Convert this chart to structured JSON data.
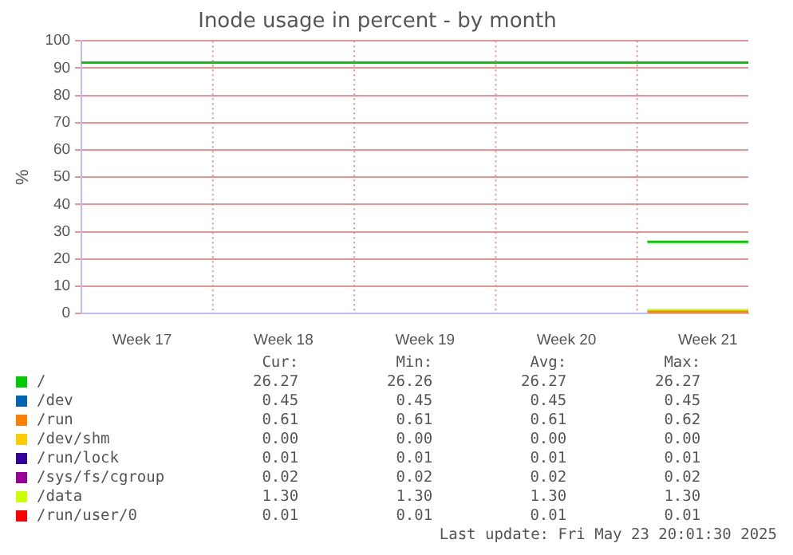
{
  "chart_data": {
    "type": "line",
    "title": "Inode usage in percent - by month",
    "ylabel": "%",
    "categories": [
      null,
      null,
      null,
      "Week 17",
      null,
      null,
      null,
      null,
      null,
      null,
      "Week 18",
      null,
      null,
      null,
      null,
      null,
      null,
      "Week 19",
      null,
      null,
      null,
      null,
      null,
      null,
      "Week 20",
      null,
      null,
      null,
      null,
      null,
      null,
      "Week 21",
      null,
      null
    ],
    "ylim": [
      0,
      100
    ],
    "yticks": [
      0,
      10,
      20,
      30,
      40,
      50,
      60,
      70,
      80,
      90,
      100
    ],
    "grid": true,
    "legend": "bottom",
    "marker": "none",
    "line_style": "solid",
    "ref_lines": [
      {
        "axis": "y",
        "value": 92,
        "color": "#00cc00"
      }
    ],
    "series": [
      {
        "name": "/",
        "color": "#00cc00",
        "values": [
          null,
          null,
          null,
          null,
          null,
          null,
          null,
          null,
          null,
          null,
          null,
          null,
          null,
          null,
          null,
          null,
          null,
          null,
          null,
          null,
          null,
          null,
          null,
          null,
          null,
          null,
          null,
          null,
          26.27,
          26.27,
          26.27,
          26.27,
          26.27,
          26.27
        ]
      },
      {
        "name": "/dev",
        "color": "#0066b3",
        "values": [
          null,
          null,
          null,
          null,
          null,
          null,
          null,
          null,
          null,
          null,
          null,
          null,
          null,
          null,
          null,
          null,
          null,
          null,
          null,
          null,
          null,
          null,
          null,
          null,
          null,
          null,
          null,
          null,
          null,
          null,
          null,
          null,
          null,
          null
        ]
      },
      {
        "name": "/run",
        "color": "#ff8000",
        "values": [
          null,
          null,
          null,
          null,
          null,
          null,
          null,
          null,
          null,
          null,
          null,
          null,
          null,
          null,
          null,
          null,
          null,
          null,
          null,
          null,
          null,
          null,
          null,
          null,
          null,
          null,
          null,
          null,
          0.61,
          0.61,
          0.61,
          0.61,
          0.61,
          0.61
        ]
      },
      {
        "name": "/dev/shm",
        "color": "#ffcc00",
        "values": [
          null,
          null,
          null,
          null,
          null,
          null,
          null,
          null,
          null,
          null,
          null,
          null,
          null,
          null,
          null,
          null,
          null,
          null,
          null,
          null,
          null,
          null,
          null,
          null,
          null,
          null,
          null,
          null,
          null,
          null,
          null,
          null,
          null,
          null
        ]
      },
      {
        "name": "/run/lock",
        "color": "#330099",
        "values": [
          null,
          null,
          null,
          null,
          null,
          null,
          null,
          null,
          null,
          null,
          null,
          null,
          null,
          null,
          null,
          null,
          null,
          null,
          null,
          null,
          null,
          null,
          null,
          null,
          null,
          null,
          null,
          null,
          null,
          null,
          null,
          null,
          null,
          null
        ]
      },
      {
        "name": "/sys/fs/cgroup",
        "color": "#990099",
        "values": [
          null,
          null,
          null,
          null,
          null,
          null,
          null,
          null,
          null,
          null,
          null,
          null,
          null,
          null,
          null,
          null,
          null,
          null,
          null,
          null,
          null,
          null,
          null,
          null,
          null,
          null,
          null,
          null,
          null,
          null,
          null,
          null,
          null,
          null
        ]
      },
      {
        "name": "/data",
        "color": "#ccff00",
        "values": [
          null,
          null,
          null,
          null,
          null,
          null,
          null,
          null,
          null,
          null,
          null,
          null,
          null,
          null,
          null,
          null,
          null,
          null,
          null,
          null,
          null,
          null,
          null,
          null,
          null,
          null,
          null,
          null,
          1.3,
          1.3,
          1.3,
          1.3,
          1.3,
          1.3
        ]
      },
      {
        "name": "/run/user/0",
        "color": "#ff0000",
        "values": [
          null,
          null,
          null,
          null,
          null,
          null,
          null,
          null,
          null,
          null,
          null,
          null,
          null,
          null,
          null,
          null,
          null,
          null,
          null,
          null,
          null,
          null,
          null,
          null,
          null,
          null,
          null,
          null,
          null,
          null,
          null,
          null,
          null,
          null
        ]
      }
    ],
    "annotations": [
      "Cur:",
      "Min:",
      "Avg:",
      "Max:",
      "26.27",
      "26.26",
      "26.27",
      "26.27",
      "0.45",
      "0.45",
      "0.45",
      "0.45",
      "0.61",
      "0.61",
      "0.61",
      "0.62",
      "0.00",
      "0.00",
      "0.00",
      "0.00",
      "0.01",
      "0.01",
      "0.01",
      "0.01",
      "0.02",
      "0.02",
      "0.02",
      "0.02",
      "1.30",
      "1.30",
      "1.30",
      "1.30",
      "0.01",
      "0.01",
      "0.01",
      "0.01",
      "Last update: Fri May 23 20:01:30 2025"
    ]
  }
}
